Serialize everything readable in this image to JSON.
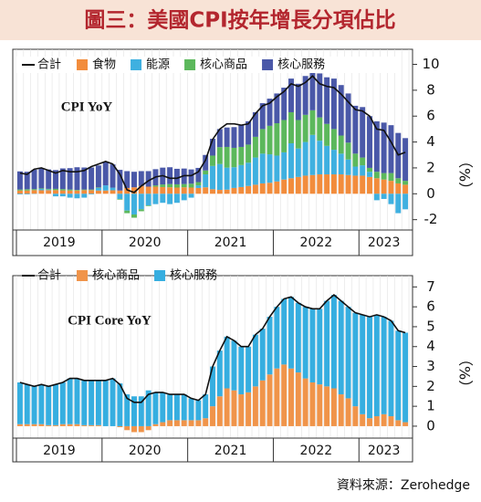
{
  "header": {
    "title": "圖三：美國CPI按年增長分項佔比"
  },
  "source": "資料來源：Zerohedge",
  "chart_data": [
    {
      "type": "bar",
      "stacked": true,
      "title": "CPI YoY",
      "y_label": "（%）",
      "years": [
        "2019",
        "2020",
        "2021",
        "2022",
        "2023"
      ],
      "ylim": [
        -2.8,
        10.6
      ],
      "yticks": [
        -2,
        0,
        2,
        4,
        6,
        8,
        10
      ],
      "line": {
        "name": "合計",
        "color": "#111111",
        "values": [
          1.6,
          1.5,
          1.9,
          2.0,
          1.8,
          1.6,
          1.8,
          1.7,
          1.7,
          1.8,
          2.1,
          2.3,
          2.5,
          2.3,
          1.5,
          0.3,
          0.1,
          0.6,
          1.0,
          1.3,
          1.4,
          1.2,
          1.2,
          1.4,
          1.4,
          1.7,
          2.6,
          4.2,
          5.0,
          5.4,
          5.4,
          5.3,
          5.4,
          6.2,
          6.8,
          7.0,
          7.5,
          7.9,
          8.5,
          8.3,
          8.6,
          9.1,
          8.5,
          8.3,
          8.2,
          7.7,
          7.1,
          6.5,
          6.4,
          6.0,
          5.0,
          4.9,
          4.0,
          3.0,
          3.2
        ]
      },
      "series": [
        {
          "name": "食物",
          "color": "#f28c3c",
          "values": [
            0.25,
            0.25,
            0.28,
            0.27,
            0.28,
            0.28,
            0.26,
            0.25,
            0.25,
            0.28,
            0.28,
            0.25,
            0.25,
            0.27,
            0.25,
            0.45,
            0.5,
            0.6,
            0.55,
            0.55,
            0.52,
            0.5,
            0.48,
            0.5,
            0.48,
            0.45,
            0.5,
            0.35,
            0.3,
            0.32,
            0.45,
            0.52,
            0.6,
            0.7,
            0.8,
            0.85,
            0.95,
            1.1,
            1.2,
            1.3,
            1.4,
            1.45,
            1.5,
            1.5,
            1.5,
            1.5,
            1.45,
            1.4,
            1.4,
            1.3,
            1.2,
            1.1,
            1.0,
            0.8,
            0.7
          ]
        },
        {
          "name": "能源",
          "color": "#3fb0e0",
          "values": [
            -0.05,
            -0.05,
            -0.02,
            0.1,
            0.05,
            -0.2,
            -0.2,
            -0.3,
            -0.35,
            -0.3,
            -0.05,
            0.2,
            0.4,
            0.2,
            -0.4,
            -1.3,
            -1.6,
            -1.2,
            -0.9,
            -0.8,
            -0.7,
            -0.8,
            -0.7,
            -0.5,
            -0.3,
            0.2,
            1.0,
            1.8,
            2.0,
            1.7,
            1.6,
            1.7,
            1.8,
            2.1,
            2.3,
            2.2,
            2.0,
            2.1,
            2.7,
            2.2,
            2.6,
            3.1,
            2.6,
            2.2,
            1.9,
            1.6,
            1.2,
            0.7,
            0.8,
            0.4,
            -0.5,
            -0.4,
            -0.8,
            -1.5,
            -1.2
          ]
        },
        {
          "name": "核心商品",
          "color": "#5cb85c",
          "values": [
            0.08,
            0.1,
            0.08,
            0.05,
            0.05,
            0.1,
            0.1,
            0.08,
            0.05,
            0.05,
            0.05,
            0.04,
            0.0,
            0.0,
            -0.05,
            -0.2,
            -0.25,
            -0.15,
            -0.05,
            0.1,
            0.2,
            0.25,
            0.25,
            0.25,
            0.3,
            0.25,
            0.3,
            0.8,
            1.3,
            1.6,
            1.5,
            1.4,
            1.4,
            1.6,
            1.9,
            2.2,
            2.5,
            2.5,
            2.4,
            2.2,
            2.1,
            1.9,
            1.8,
            1.7,
            1.6,
            1.4,
            1.3,
            1.0,
            0.6,
            0.3,
            0.5,
            0.5,
            0.6,
            0.4,
            0.3
          ]
        },
        {
          "name": "核心服務",
          "color": "#4a58a8",
          "values": [
            1.4,
            1.35,
            1.5,
            1.55,
            1.5,
            1.45,
            1.6,
            1.65,
            1.75,
            1.7,
            1.7,
            1.7,
            1.8,
            1.8,
            1.6,
            1.3,
            1.2,
            1.15,
            1.2,
            1.25,
            1.3,
            1.3,
            1.2,
            1.2,
            1.1,
            1.1,
            1.2,
            1.3,
            1.4,
            1.5,
            1.6,
            1.7,
            1.8,
            1.9,
            2.0,
            2.1,
            2.3,
            2.5,
            2.6,
            2.8,
            3.0,
            3.3,
            3.4,
            3.6,
            3.9,
            3.9,
            3.8,
            3.7,
            3.9,
            4.0,
            3.9,
            3.9,
            3.7,
            3.5,
            3.3
          ]
        }
      ]
    },
    {
      "type": "bar",
      "stacked": true,
      "title": "CPI Core YoY",
      "y_label": "（%）",
      "years": [
        "2019",
        "2020",
        "2021",
        "2022",
        "2023"
      ],
      "ylim": [
        -0.6,
        7.2
      ],
      "yticks": [
        0,
        1,
        2,
        3,
        4,
        5,
        6,
        7
      ],
      "line": {
        "name": "合計",
        "color": "#111111",
        "values": [
          2.2,
          2.1,
          2.0,
          2.1,
          2.0,
          2.1,
          2.2,
          2.4,
          2.4,
          2.3,
          2.3,
          2.3,
          2.3,
          2.4,
          2.1,
          1.4,
          1.2,
          1.2,
          1.6,
          1.7,
          1.7,
          1.6,
          1.6,
          1.6,
          1.4,
          1.3,
          1.6,
          3.0,
          3.8,
          4.5,
          4.3,
          4.0,
          4.0,
          4.6,
          4.9,
          5.5,
          6.0,
          6.4,
          6.5,
          6.2,
          6.0,
          5.9,
          5.9,
          6.3,
          6.6,
          6.3,
          6.0,
          5.7,
          5.6,
          5.5,
          5.6,
          5.5,
          5.3,
          4.8,
          4.7
        ]
      },
      "series": [
        {
          "name": "核心商品",
          "color": "#f0944a",
          "values": [
            0.1,
            0.1,
            0.1,
            0.1,
            0.05,
            0.05,
            0.1,
            0.1,
            0.1,
            0.05,
            0.05,
            0.05,
            0.0,
            0.0,
            -0.05,
            -0.2,
            -0.3,
            -0.3,
            -0.2,
            0.1,
            0.2,
            0.3,
            0.3,
            0.3,
            0.3,
            0.3,
            0.4,
            1.0,
            1.5,
            1.9,
            1.8,
            1.6,
            1.7,
            2.0,
            2.3,
            2.6,
            2.9,
            3.1,
            2.9,
            2.7,
            2.4,
            2.2,
            2.1,
            2.0,
            1.9,
            1.6,
            1.4,
            1.0,
            0.6,
            0.4,
            0.5,
            0.6,
            0.5,
            0.3,
            0.2
          ]
        },
        {
          "name": "核心服務",
          "color": "#36aee0",
          "values": [
            2.1,
            2.0,
            1.9,
            2.0,
            1.95,
            2.05,
            2.1,
            2.3,
            2.3,
            2.25,
            2.25,
            2.25,
            2.3,
            2.4,
            2.15,
            1.6,
            1.5,
            1.5,
            1.8,
            1.6,
            1.5,
            1.3,
            1.3,
            1.3,
            1.1,
            1.0,
            1.2,
            2.0,
            2.3,
            2.6,
            2.5,
            2.4,
            2.3,
            2.6,
            2.6,
            2.9,
            3.1,
            3.3,
            3.6,
            3.5,
            3.6,
            3.7,
            3.8,
            4.3,
            4.7,
            4.7,
            4.6,
            4.7,
            5.0,
            5.1,
            5.1,
            4.9,
            4.8,
            4.5,
            4.5
          ]
        }
      ]
    }
  ]
}
